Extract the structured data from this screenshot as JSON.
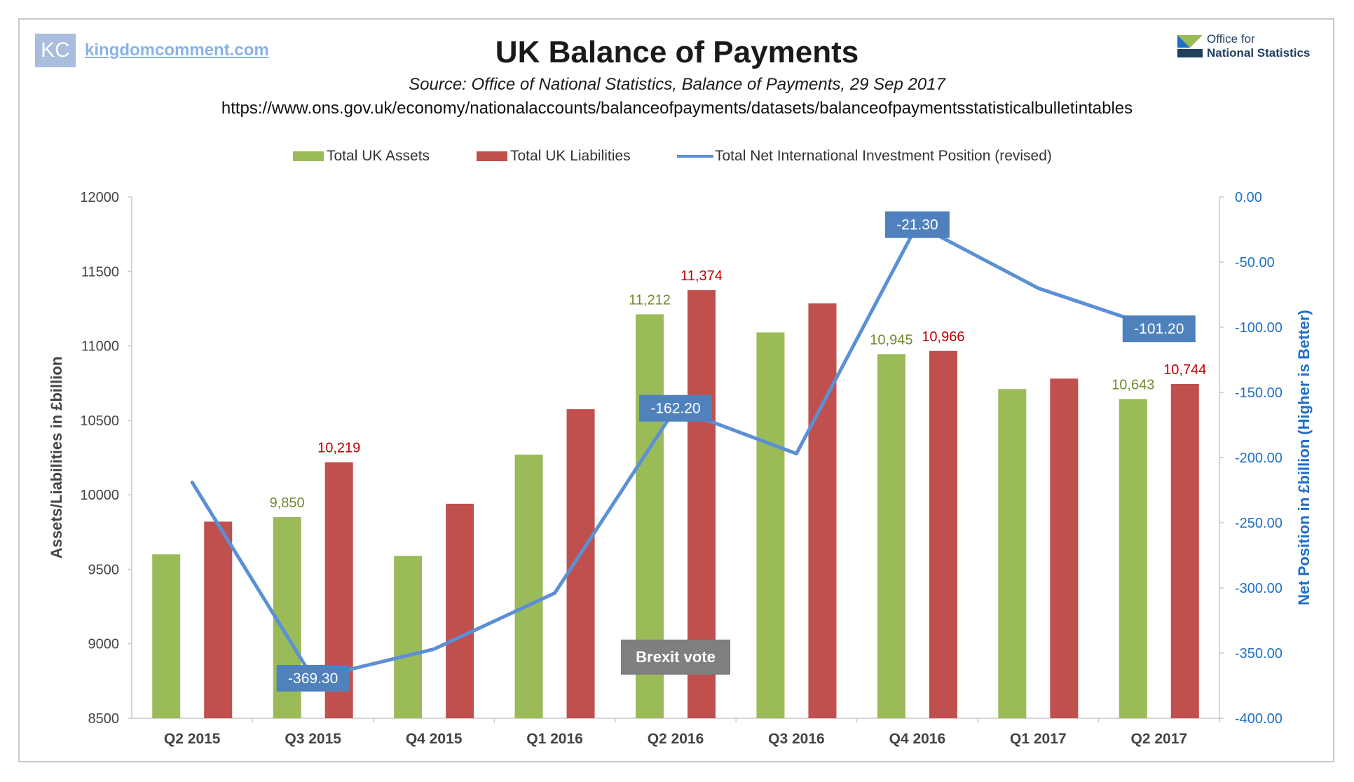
{
  "header": {
    "logo_text": "KC",
    "site_link": "kingdomcomment.com",
    "title": "UK Balance of Payments",
    "subtitle": "Source: Office of National Statistics, Balance of Payments, 29 Sep 2017",
    "url": "https://www.ons.gov.uk/economy/nationalaccounts/balanceofpayments/datasets/balanceofpaymentsstatisticalbulletintables",
    "ons_logo_line1": "Office for",
    "ons_logo_line2": "National Statistics"
  },
  "chart_data": {
    "type": "bar",
    "categories": [
      "Q2 2015",
      "Q3 2015",
      "Q4 2015",
      "Q1 2016",
      "Q2 2016",
      "Q3 2016",
      "Q4 2016",
      "Q1 2017",
      "Q2 2017"
    ],
    "series": [
      {
        "name": "Total UK Assets",
        "kind": "bar",
        "axis": "left",
        "color": "#9bbb59",
        "values": [
          9600,
          9850,
          9590,
          10270,
          11212,
          11090,
          10945,
          10710,
          10643
        ],
        "labels": [
          null,
          "9,850",
          null,
          null,
          "11,212",
          null,
          "10,945",
          null,
          "10,643"
        ]
      },
      {
        "name": "Total UK Liabilities",
        "kind": "bar",
        "axis": "left",
        "color": "#c0504d",
        "values": [
          9820,
          10219,
          9940,
          10575,
          11374,
          11285,
          10966,
          10780,
          10744
        ],
        "labels": [
          null,
          "10,219",
          null,
          null,
          "11,374",
          null,
          "10,966",
          null,
          "10,744"
        ]
      },
      {
        "name": "Total Net International Investment Position (revised)",
        "kind": "line",
        "axis": "right",
        "color": "#5b8fd6",
        "values": [
          -219.0,
          -369.3,
          -347.0,
          -304.0,
          -162.2,
          -197.0,
          -21.3,
          -70.0,
          -101.2
        ],
        "labels": [
          null,
          "-369.30",
          null,
          null,
          "-162.20",
          null,
          "-21.30",
          null,
          "-101.20"
        ]
      }
    ],
    "ylabel": "Assets/Liabilities in £billion",
    "ylabel_right": "Net Position in £billion (Higher is Better)",
    "ylim": [
      8500,
      12000
    ],
    "ylim_right": [
      -400,
      0
    ],
    "yticks": [
      "12000",
      "11500",
      "11000",
      "10500",
      "10000",
      "9500",
      "9000",
      "8500"
    ],
    "yticks_right": [
      "0.00",
      "-50.00",
      "-100.00",
      "-150.00",
      "-200.00",
      "-250.00",
      "-300.00",
      "-350.00",
      "-400.00"
    ],
    "annotation": "Brexit vote",
    "legend_position": "top",
    "grid": false
  },
  "colors": {
    "assets": "#9bbb59",
    "liabilities": "#c0504d",
    "net_line": "#5b8fd6",
    "net_label_bg": "#4f81bd",
    "asset_label_text": "#6f8a2b",
    "liability_label_text": "#c00000",
    "right_axis_text": "#1f6fc5",
    "annotation_bg": "#7f7f7f"
  }
}
